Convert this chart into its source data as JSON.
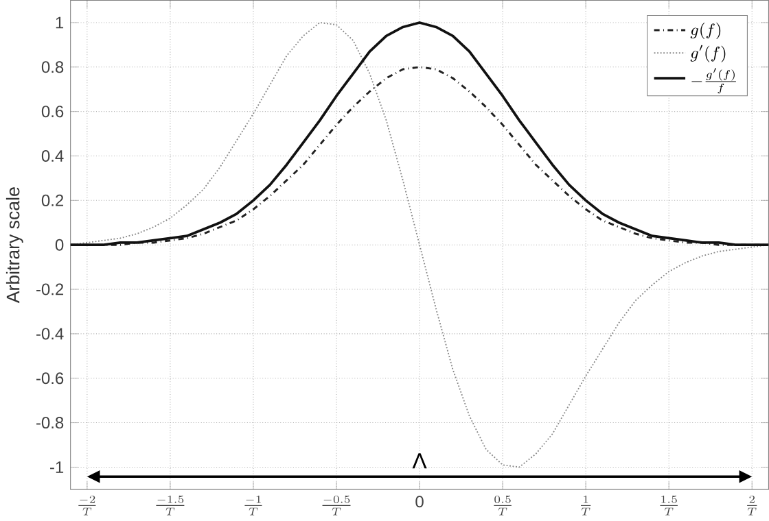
{
  "chart_data": {
    "type": "line",
    "ylabel": "Arbitrary scale",
    "x": [
      -2.1,
      -2.0,
      -1.9,
      -1.8,
      -1.7,
      -1.6,
      -1.5,
      -1.4,
      -1.3,
      -1.2,
      -1.1,
      -1.0,
      -0.9,
      -0.8,
      -0.7,
      -0.6,
      -0.5,
      -0.4,
      -0.3,
      -0.2,
      -0.1,
      0,
      0.1,
      0.2,
      0.3,
      0.4,
      0.5,
      0.6,
      0.7,
      0.8,
      0.9,
      1.0,
      1.1,
      1.2,
      1.3,
      1.4,
      1.5,
      1.6,
      1.7,
      1.8,
      1.9,
      2.0,
      2.1
    ],
    "series": [
      {
        "name": "g(f)",
        "color": "#222222",
        "line_style": "dashed",
        "values": [
          0,
          0,
          0,
          0,
          0.01,
          0.01,
          0.02,
          0.03,
          0.05,
          0.08,
          0.11,
          0.16,
          0.22,
          0.29,
          0.36,
          0.45,
          0.54,
          0.62,
          0.69,
          0.75,
          0.79,
          0.8,
          0.79,
          0.75,
          0.69,
          0.62,
          0.54,
          0.45,
          0.36,
          0.29,
          0.22,
          0.16,
          0.11,
          0.08,
          0.05,
          0.03,
          0.02,
          0.01,
          0.01,
          0,
          0,
          0,
          0
        ]
      },
      {
        "name": "g'(f)",
        "color": "#888888",
        "line_style": "dotted",
        "values": [
          0,
          0.01,
          0.02,
          0.03,
          0.05,
          0.08,
          0.12,
          0.18,
          0.25,
          0.35,
          0.47,
          0.59,
          0.72,
          0.85,
          0.94,
          1.0,
          0.99,
          0.92,
          0.77,
          0.56,
          0.29,
          0,
          -0.29,
          -0.56,
          -0.77,
          -0.92,
          -0.99,
          -1.0,
          -0.94,
          -0.85,
          -0.72,
          -0.59,
          -0.47,
          -0.35,
          -0.25,
          -0.18,
          -0.12,
          -0.08,
          -0.05,
          -0.03,
          -0.02,
          -0.01,
          0
        ]
      },
      {
        "name": "-\\frac{g'(f)}{f}",
        "color": "#111111",
        "line_style": "solid",
        "values": [
          0,
          0,
          0,
          0.01,
          0.01,
          0.02,
          0.03,
          0.04,
          0.07,
          0.1,
          0.14,
          0.2,
          0.27,
          0.36,
          0.46,
          0.56,
          0.67,
          0.77,
          0.87,
          0.94,
          0.98,
          1.0,
          0.98,
          0.94,
          0.87,
          0.77,
          0.67,
          0.56,
          0.46,
          0.36,
          0.27,
          0.2,
          0.14,
          0.1,
          0.07,
          0.04,
          0.03,
          0.02,
          0.01,
          0.01,
          0,
          0,
          0
        ]
      }
    ],
    "xlim": [
      -2.1,
      2.1
    ],
    "ylim": [
      -1.1,
      1.1
    ],
    "xticks": [
      {
        "value": -2,
        "label": "\\frac{-2}{T}"
      },
      {
        "value": -1.5,
        "label": "\\frac{-1.5}{T}"
      },
      {
        "value": -1,
        "label": "\\frac{-1}{T}"
      },
      {
        "value": -0.5,
        "label": "\\frac{-0.5}{T}"
      },
      0,
      {
        "value": 0.5,
        "label": "\\frac{0.5}{T}"
      },
      {
        "value": 1,
        "label": "\\frac{1}{T}"
      },
      {
        "value": 1.5,
        "label": "\\frac{1.5}{T}"
      },
      {
        "value": 2,
        "label": "\\frac{2}{T}"
      }
    ],
    "yticks": [
      -1,
      -0.8,
      -0.6,
      -0.4,
      -0.2,
      0,
      0.2,
      0.4,
      0.6,
      0.8,
      1
    ],
    "annotations": [
      "Λ"
    ],
    "grid": true,
    "legend": "top right"
  }
}
